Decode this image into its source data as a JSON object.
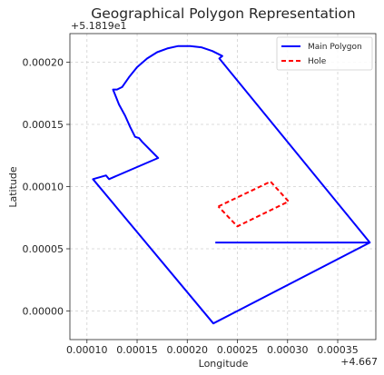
{
  "chart_data": {
    "type": "polygon",
    "title": "Geographical Polygon Representation",
    "xlabel": "Longitude",
    "ylabel": "Latitude",
    "x_offset_label": "+4.667",
    "y_offset_label": "+5.1819e1",
    "xlim": [
      8.3e-05,
      0.000388
    ],
    "ylim": [
      -2.3e-05,
      0.000223
    ],
    "x_ticks": [
      0.0001,
      0.00015,
      0.0002,
      0.00025,
      0.0003,
      0.00035
    ],
    "x_tick_labels": [
      "0.00010",
      "0.00015",
      "0.00020",
      "0.00025",
      "0.00030",
      "0.00035"
    ],
    "y_ticks": [
      0.0,
      5e-05,
      0.0001,
      0.00015,
      0.0002
    ],
    "y_tick_labels": [
      "0.00000",
      "0.00005",
      "0.00010",
      "0.00015",
      "0.00020"
    ],
    "grid": true,
    "legend_position": "top-right",
    "series": [
      {
        "name": "Main Polygon",
        "style": "solid",
        "color": "#0000ff",
        "x": [
          0.000228,
          0.000382,
          0.000232,
          0.000235,
          0.000225,
          0.000214,
          0.000203,
          0.000191,
          0.00018,
          0.00017,
          0.00016,
          0.00015,
          0.000142,
          0.000135,
          0.00013,
          0.000126,
          0.000132,
          0.000138,
          0.000143,
          0.000148,
          0.000152,
          0.000155,
          0.000171,
          0.000122,
          0.000119,
          0.000106,
          0.000226,
          0.000382
        ],
        "y": [
          5.5e-05,
          5.5e-05,
          0.000203,
          0.000205,
          0.000209,
          0.000212,
          0.000213,
          0.000213,
          0.000211,
          0.000208,
          0.000203,
          0.000196,
          0.000188,
          0.00018,
          0.000178,
          0.000178,
          0.000166,
          0.000157,
          0.000148,
          0.00014,
          0.000139,
          0.000136,
          0.000123,
          0.000106,
          0.000109,
          0.000106,
          -1e-05,
          5.5e-05
        ]
      },
      {
        "name": "Hole",
        "style": "dashed",
        "color": "#ff0000",
        "x": [
          0.000231,
          0.000283,
          0.000301,
          0.00025,
          0.000231
        ],
        "y": [
          8.4e-05,
          0.000104,
          8.8e-05,
          6.8e-05,
          8.4e-05
        ]
      }
    ]
  }
}
